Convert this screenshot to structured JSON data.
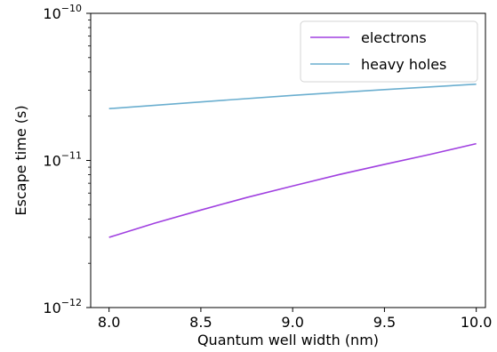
{
  "chart_data": {
    "type": "line",
    "title": "",
    "xlabel": "Quantum well width (nm)",
    "ylabel": "Escape time (s)",
    "xlim": [
      7.9,
      10.05
    ],
    "ylim": [
      1e-12,
      1e-10
    ],
    "yscale": "log",
    "xticks": [
      8.0,
      8.5,
      9.0,
      9.5,
      10.0
    ],
    "xtick_labels": [
      "8.0",
      "8.5",
      "9.0",
      "9.5",
      "10.0"
    ],
    "yticks": [
      {
        "value": 1e-12,
        "base": "10",
        "exp": "−12"
      },
      {
        "value": 1e-11,
        "base": "10",
        "exp": "−11"
      },
      {
        "value": 1e-10,
        "base": "10",
        "exp": "−10"
      }
    ],
    "grid": false,
    "legend_position": "top-right",
    "series": [
      {
        "name": "electrons",
        "color": "#a040e0",
        "x": [
          8.0,
          8.25,
          8.5,
          8.75,
          9.0,
          9.25,
          9.5,
          9.75,
          10.0
        ],
        "y": [
          3e-12,
          3.75e-12,
          4.6e-12,
          5.6e-12,
          6.7e-12,
          8e-12,
          9.4e-12,
          1.1e-11,
          1.3e-11
        ]
      },
      {
        "name": "heavy holes",
        "color": "#6aaecf",
        "x": [
          8.0,
          8.5,
          9.0,
          9.5,
          10.0
        ],
        "y": [
          2.25e-11,
          2.5e-11,
          2.77e-11,
          3.03e-11,
          3.3e-11
        ]
      }
    ]
  }
}
